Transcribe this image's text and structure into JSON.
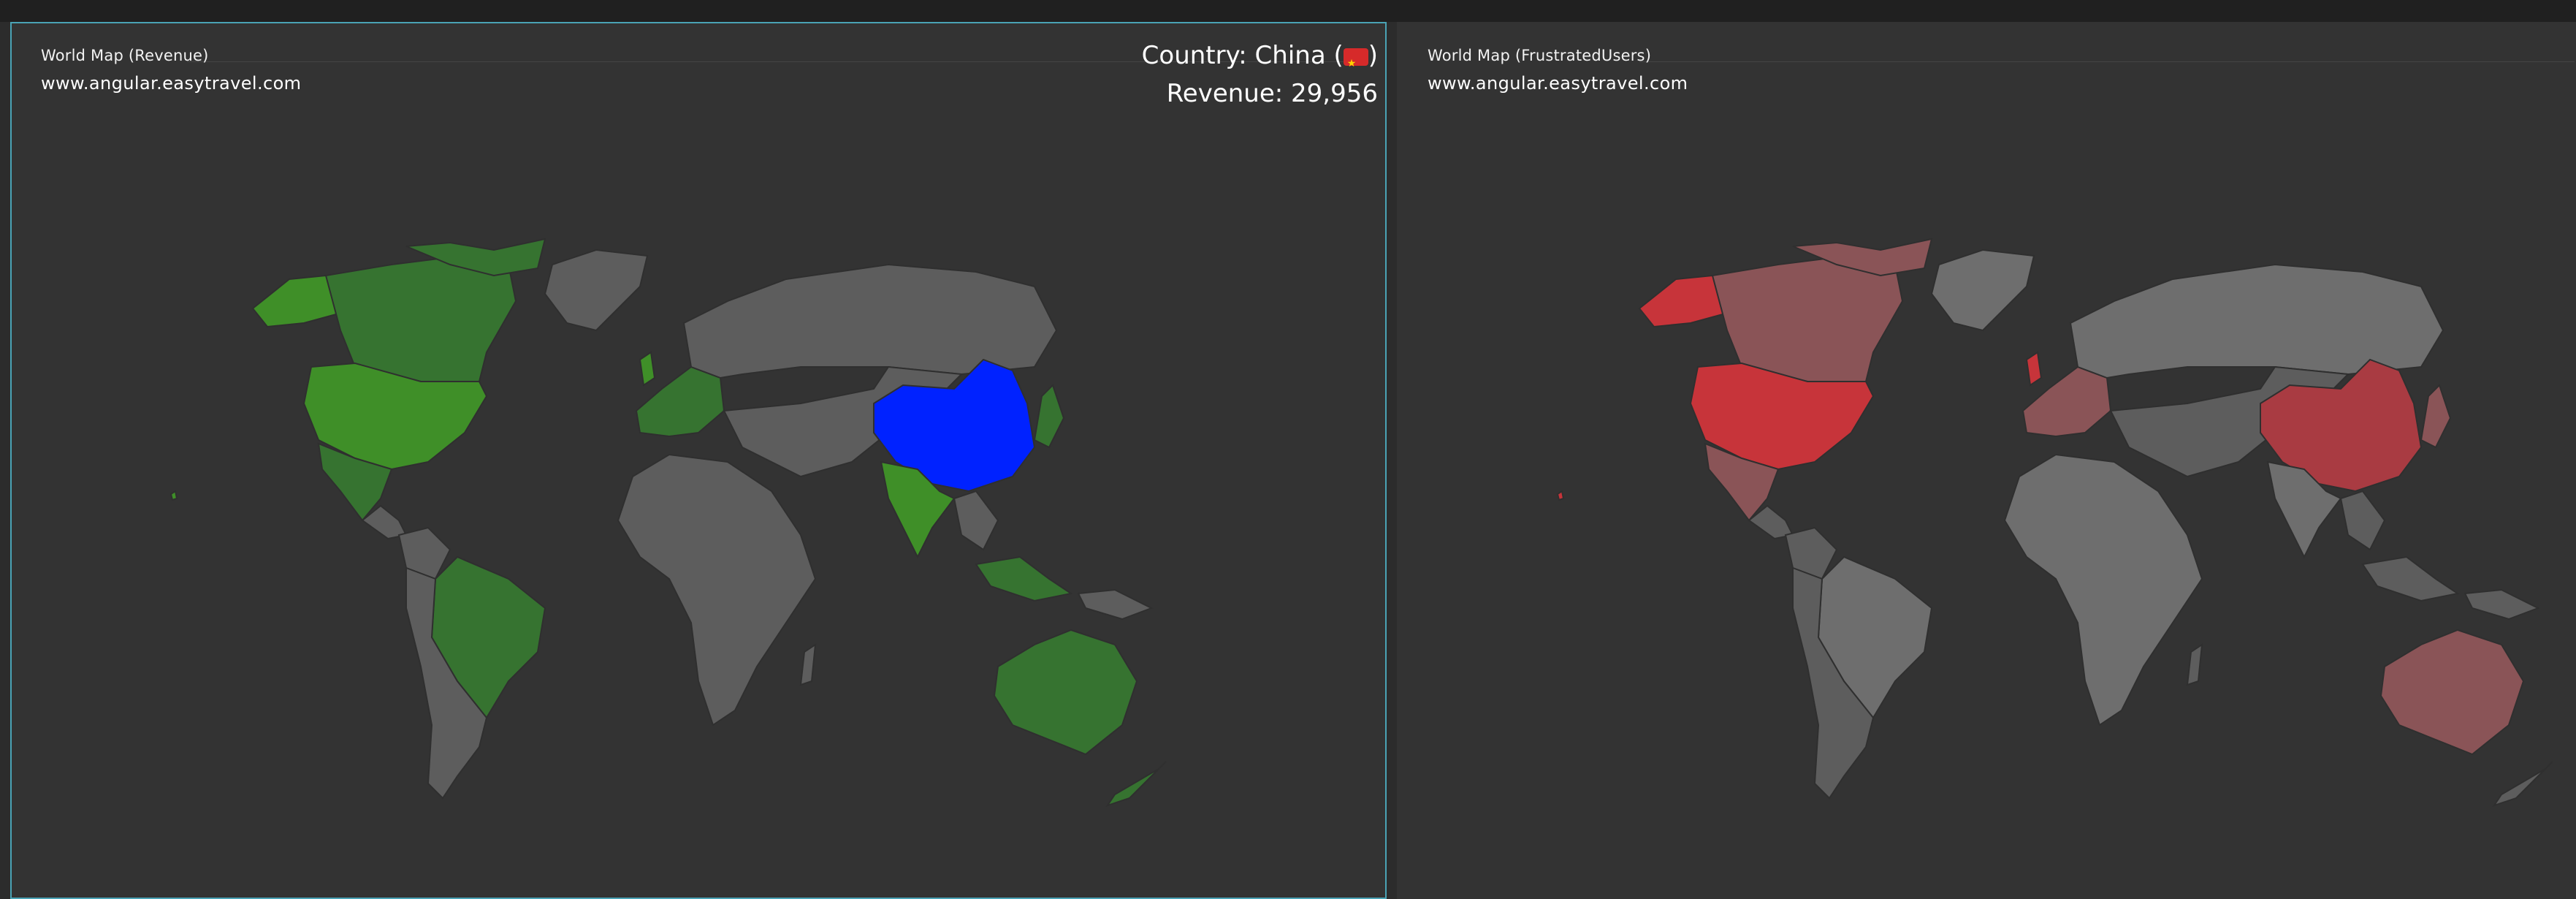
{
  "tiles": [
    {
      "title": "World Map (Revenue)",
      "subtitle": "www.angular.easytravel.com",
      "tooltip": {
        "country_prefix": "Country: China (",
        "country_suffix": ")",
        "revenue_line": "Revenue: 29,956"
      },
      "colors": {
        "highlight": "#0022ff",
        "high": "#3f8f28",
        "low": "#367330",
        "none": "#5d5d5d"
      }
    },
    {
      "title": "World Map (FrustratedUsers)",
      "subtitle": "www.angular.easytravel.com",
      "colors": {
        "high": "#c7343a",
        "low": "#8a5457",
        "none": "#5d5d5d",
        "light": "#6e6e6e"
      }
    }
  ]
}
